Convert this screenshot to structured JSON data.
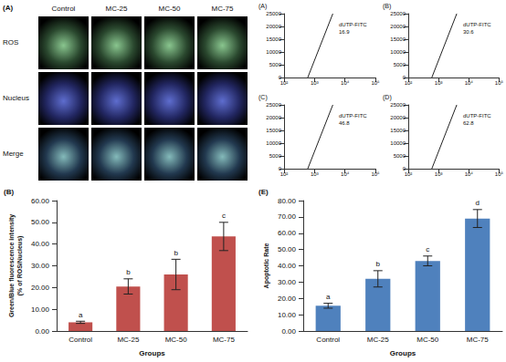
{
  "micrographs": {
    "title": "(A)",
    "columns": [
      "Control",
      "MC-25",
      "MC-50",
      "MC-75"
    ],
    "rows": [
      "ROS",
      "Nucleus",
      "Merge"
    ]
  },
  "chart_data": [
    {
      "type": "scatter",
      "title": "(A)",
      "log": "x",
      "grid": false,
      "xlim": [
        100,
        100000
      ],
      "xticks": [
        {
          "value": 100,
          "label": "10²"
        },
        {
          "value": 1000,
          "label": "10³"
        },
        {
          "value": 10000,
          "label": "10⁴"
        },
        {
          "value": 100000,
          "label": "10⁵"
        }
      ],
      "ylim": [
        0,
        25000
      ],
      "yticks": [
        0,
        5000,
        10000,
        15000,
        20000,
        25000
      ],
      "gate": {
        "label": "dUTP-FITC",
        "value": 16.9,
        "x": [
          600,
          4000
        ],
        "y": [
          0,
          25000
        ]
      }
    },
    {
      "type": "scatter",
      "title": "(B)",
      "log": "x",
      "grid": false,
      "xlim": [
        100,
        100000
      ],
      "xticks": [
        {
          "value": 100,
          "label": "10²"
        },
        {
          "value": 1000,
          "label": "10³"
        },
        {
          "value": 10000,
          "label": "10⁴"
        },
        {
          "value": 100000,
          "label": "10⁵"
        }
      ],
      "ylim": [
        0,
        25000
      ],
      "yticks": [
        0,
        5000,
        10000,
        15000,
        20000,
        25000
      ],
      "gate": {
        "label": "dUTP-FITC",
        "value": 30.6,
        "x": [
          600,
          4000
        ],
        "y": [
          0,
          25000
        ]
      }
    },
    {
      "type": "scatter",
      "title": "(C)",
      "log": "x",
      "grid": false,
      "xlim": [
        100,
        100000
      ],
      "xticks": [
        {
          "value": 100,
          "label": "10²"
        },
        {
          "value": 1000,
          "label": "10³"
        },
        {
          "value": 10000,
          "label": "10⁴"
        },
        {
          "value": 100000,
          "label": "10⁵"
        }
      ],
      "ylim": [
        0,
        25000
      ],
      "yticks": [
        0,
        5000,
        10000,
        15000,
        20000,
        25000
      ],
      "gate": {
        "label": "dUTP-FITC",
        "value": 46.8,
        "x": [
          600,
          4000
        ],
        "y": [
          0,
          25000
        ]
      }
    },
    {
      "type": "scatter",
      "title": "(D)",
      "log": "x",
      "grid": false,
      "xlim": [
        100,
        100000
      ],
      "xticks": [
        {
          "value": 100,
          "label": "10²"
        },
        {
          "value": 1000,
          "label": "10³"
        },
        {
          "value": 10000,
          "label": "10⁴"
        },
        {
          "value": 100000,
          "label": "10⁵"
        }
      ],
      "ylim": [
        0,
        25000
      ],
      "yticks": [
        0,
        5000,
        10000,
        15000,
        20000,
        25000
      ],
      "gate": {
        "label": "dUTP-FITC",
        "value": 62.8,
        "x": [
          600,
          4000
        ],
        "y": [
          0,
          25000
        ]
      }
    },
    {
      "type": "bar",
      "title": "(B)",
      "x_label": "Groups",
      "y_label": "Green/Blue fluorescence intensity (% of ROS/Nucleus)",
      "categories": [
        "Control",
        "MC-25",
        "MC-50",
        "MC-75"
      ],
      "values": [
        4.0,
        20.5,
        26.0,
        43.5
      ],
      "errors": [
        0.5,
        3.5,
        7.0,
        6.5
      ],
      "annotations": [
        "a",
        "b",
        "b",
        "c"
      ],
      "color": "#c0504d",
      "ylim": [
        0,
        60
      ],
      "yticks": [
        {
          "value": 0,
          "label": "0.00"
        },
        {
          "value": 10,
          "label": "10.00"
        },
        {
          "value": 20,
          "label": "20.00"
        },
        {
          "value": 30,
          "label": "30.00"
        },
        {
          "value": 40,
          "label": "40.00"
        },
        {
          "value": 50,
          "label": "50.00"
        },
        {
          "value": 60,
          "label": "60.00"
        }
      ],
      "grid": false,
      "data_labels": false
    },
    {
      "type": "bar",
      "title": "(E)",
      "x_label": "Groups",
      "y_label": "Apoptotic Rate",
      "categories": [
        "Control",
        "MC-25",
        "MC-50",
        "MC-75"
      ],
      "values": [
        15.5,
        32.0,
        43.0,
        69.0
      ],
      "errors": [
        1.5,
        5.0,
        3.0,
        5.5
      ],
      "annotations": [
        "a",
        "b",
        "c",
        "d"
      ],
      "color": "#4f81bd",
      "ylim": [
        0,
        80
      ],
      "yticks": [
        {
          "value": 0,
          "label": "0.00"
        },
        {
          "value": 10,
          "label": "10.00"
        },
        {
          "value": 20,
          "label": "20.00"
        },
        {
          "value": 30,
          "label": "30.00"
        },
        {
          "value": 40,
          "label": "40.00"
        },
        {
          "value": 50,
          "label": "50.00"
        },
        {
          "value": 60,
          "label": "60.00"
        },
        {
          "value": 70,
          "label": "70.00"
        },
        {
          "value": 80,
          "label": "80.00"
        }
      ],
      "grid": false,
      "data_labels": false
    }
  ]
}
